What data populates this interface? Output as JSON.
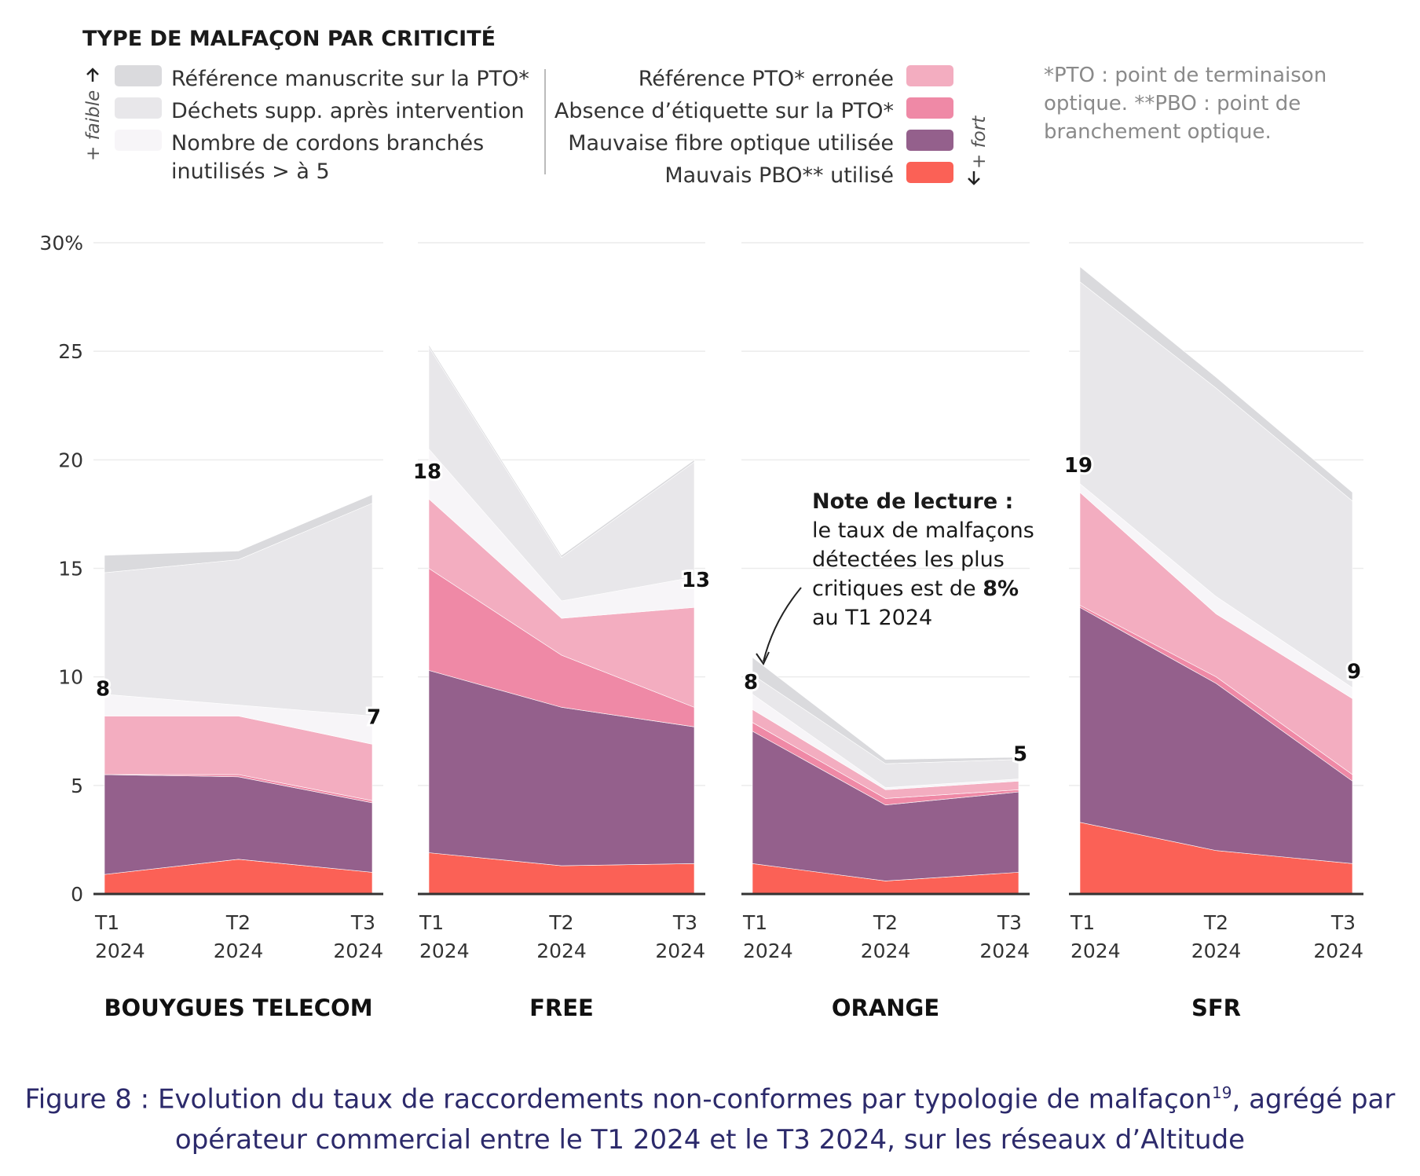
{
  "legend": {
    "title": "TYPE DE MALFAÇON PAR CRITICITÉ",
    "low_hint": "+ faible",
    "high_hint": "+ fort",
    "left_items": [
      {
        "lines": [
          "Référence manuscrite sur la PTO*"
        ],
        "color": "#dadadd"
      },
      {
        "lines": [
          "Déchets supp. après intervention"
        ],
        "color": "#e8e7ea"
      },
      {
        "lines": [
          "Nombre de cordons branchés",
          "inutilisés > à 5"
        ],
        "color": "#f7f5f8"
      }
    ],
    "right_items": [
      {
        "lines": [
          "Référence PTO* erronée"
        ],
        "color": "#f3adc0"
      },
      {
        "lines": [
          "Absence d’étiquette sur la PTO*"
        ],
        "color": "#ef89a6"
      },
      {
        "lines": [
          "Mauvaise fibre optique utilisée"
        ],
        "color": "#94608c"
      },
      {
        "lines": [
          "Mauvais PBO** utilisé"
        ],
        "color": "#fb6156"
      }
    ]
  },
  "footnote": {
    "lines": [
      "*PTO : point de terminaison",
      "optique. **PBO : point de",
      "branchement optique."
    ]
  },
  "annotation": {
    "lines": [
      "Note de lecture :",
      "le taux de malfaçons",
      "détectées les plus",
      "critiques est de ",
      "au T1 2024"
    ],
    "bold": "8%"
  },
  "caption": {
    "line1": "Figure 8 : Evolution du taux de raccordements non-conformes par typologie de malfaçon",
    "superscript": "19",
    "line1_end": ", agrégé par",
    "line2": "opérateur commercial entre le T1 2024 et le T3 2024, sur les réseaux d’Altitude"
  },
  "chart_data": {
    "type": "area",
    "subtype": "stacked",
    "ylim": [
      0,
      30
    ],
    "y_ticks": [
      "30%",
      "25",
      "20",
      "15",
      "10",
      "5",
      "0"
    ],
    "y_tick_values": [
      30,
      25,
      20,
      15,
      10,
      5,
      0
    ],
    "grid": true,
    "categories": [
      [
        "T1",
        "2024"
      ],
      [
        "T2",
        "2024"
      ],
      [
        "T3",
        "2024"
      ]
    ],
    "series_order_bottom_to_top": [
      "Mauvais PBO** utilisé",
      "Mauvaise fibre optique utilisée",
      "Absence d’étiquette sur la PTO*",
      "Référence PTO* erronée",
      "Nombre de cordons branchés inutilisés > à 5",
      "Déchets supp. après intervention",
      "Référence manuscrite sur la PTO*"
    ],
    "colors": [
      "#fb6156",
      "#94608c",
      "#ef89a6",
      "#f3adc0",
      "#f7f5f8",
      "#e8e7ea",
      "#dadadd"
    ],
    "panels": [
      {
        "name": "BOUYGUES TELECOM",
        "series": [
          {
            "name": "Mauvais PBO** utilisé",
            "values": [
              0.9,
              1.6,
              1.0
            ]
          },
          {
            "name": "Mauvaise fibre optique utilisée",
            "values": [
              4.6,
              3.8,
              3.2
            ]
          },
          {
            "name": "Absence d’étiquette sur la PTO*",
            "values": [
              0.0,
              0.1,
              0.1
            ]
          },
          {
            "name": "Référence PTO* erronée",
            "values": [
              2.7,
              2.7,
              2.6
            ]
          },
          {
            "name": "Nombre de cordons branchés inutilisés > à 5",
            "values": [
              1.0,
              0.5,
              1.3
            ]
          },
          {
            "name": "Déchets supp. après intervention",
            "values": [
              5.6,
              6.7,
              9.8
            ]
          },
          {
            "name": "Référence manuscrite sur la PTO*",
            "values": [
              0.8,
              0.4,
              0.4
            ]
          }
        ],
        "labels": {
          "first": "8",
          "last": "7"
        }
      },
      {
        "name": "FREE",
        "series": [
          {
            "name": "Mauvais PBO** utilisé",
            "values": [
              1.9,
              1.3,
              1.4
            ]
          },
          {
            "name": "Mauvaise fibre optique utilisée",
            "values": [
              8.4,
              7.3,
              6.3
            ]
          },
          {
            "name": "Absence d’étiquette sur la PTO*",
            "values": [
              4.7,
              2.4,
              0.9
            ]
          },
          {
            "name": "Référence PTO* erronée",
            "values": [
              3.2,
              1.7,
              4.6
            ]
          },
          {
            "name": "Nombre de cordons branchés inutilisés > à 5",
            "values": [
              2.3,
              0.8,
              1.4
            ]
          },
          {
            "name": "Déchets supp. après intervention",
            "values": [
              4.7,
              2.0,
              5.3
            ]
          },
          {
            "name": "Référence manuscrite sur la PTO*",
            "values": [
              0.1,
              0.1,
              0.1
            ]
          }
        ],
        "labels": {
          "first": "18",
          "last": "13"
        }
      },
      {
        "name": "ORANGE",
        "series": [
          {
            "name": "Mauvais PBO** utilisé",
            "values": [
              1.4,
              0.6,
              1.0
            ]
          },
          {
            "name": "Mauvaise fibre optique utilisée",
            "values": [
              6.1,
              3.5,
              3.7
            ]
          },
          {
            "name": "Absence d’étiquette sur la PTO*",
            "values": [
              0.4,
              0.3,
              0.1
            ]
          },
          {
            "name": "Référence PTO* erronée",
            "values": [
              0.6,
              0.4,
              0.4
            ]
          },
          {
            "name": "Nombre de cordons branchés inutilisés > à 5",
            "values": [
              0.7,
              0.1,
              0.1
            ]
          },
          {
            "name": "Déchets supp. après intervention",
            "values": [
              0.9,
              1.1,
              0.9
            ]
          },
          {
            "name": "Référence manuscrite sur la PTO*",
            "values": [
              0.8,
              0.2,
              0.1
            ]
          }
        ],
        "labels": {
          "first": "8",
          "last": "5"
        }
      },
      {
        "name": "SFR",
        "series": [
          {
            "name": "Mauvais PBO** utilisé",
            "values": [
              3.3,
              2.0,
              1.4
            ]
          },
          {
            "name": "Mauvaise fibre optique utilisée",
            "values": [
              9.9,
              7.7,
              3.8
            ]
          },
          {
            "name": "Absence d’étiquette sur la PTO*",
            "values": [
              0.1,
              0.3,
              0.3
            ]
          },
          {
            "name": "Référence PTO* erronée",
            "values": [
              5.2,
              2.9,
              3.5
            ]
          },
          {
            "name": "Nombre de cordons branchés inutilisés > à 5",
            "values": [
              0.4,
              0.8,
              0.5
            ]
          },
          {
            "name": "Déchets supp. après intervention",
            "values": [
              9.3,
              9.6,
              8.6
            ]
          },
          {
            "name": "Référence manuscrite sur la PTO*",
            "values": [
              0.7,
              0.5,
              0.4
            ]
          }
        ],
        "labels": {
          "first": "19",
          "last": "9"
        }
      }
    ]
  }
}
